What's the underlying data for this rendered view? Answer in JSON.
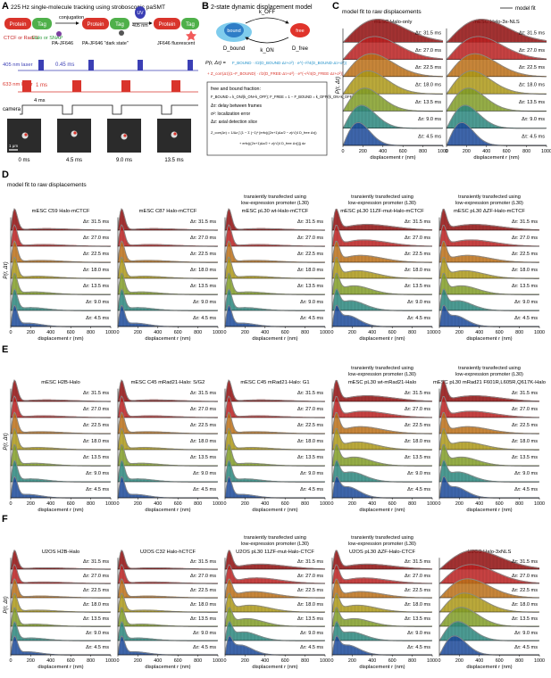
{
  "panel_letters": [
    "A",
    "B",
    "C",
    "D",
    "E",
    "F"
  ],
  "panelA": {
    "title": "225 Hz single-molecule tracking using stroboscopic paSMT",
    "protein": "Protein",
    "tag": "Tag",
    "pa_jf646": "PA-JF646",
    "conjugation": "conjugation",
    "ctcf_rad21": "CTCF or Rad21",
    "halo_snap": "Halo or SNAP",
    "uv": "UV",
    "uv_405": "405 nm",
    "dark_state": "PA-JF646 \"dark state\"",
    "fluorescent": "JF646 fluorescent",
    "laser405": "405 nm laser",
    "pulse405": "0.45 ms",
    "laser633": "633 nm laser",
    "pulse633": "1 ms",
    "camera": "camera",
    "camera_period": "4 ms",
    "scalebar": "1 μm",
    "frame_times": [
      "0 ms",
      "4.5 ms",
      "9.0 ms",
      "13.5 ms"
    ]
  },
  "panelB": {
    "title": "2-state dynamic displacement model",
    "k_off": "k_OFF",
    "k_on": "k_ON",
    "bound": "bound",
    "free": "free",
    "d_bound": "D_bound",
    "d_free": "D_free",
    "eq_lhs": "P(r, Δτ) =",
    "eq_term1": "F_BOUND · r/2(D_BOUND·Δτ+σ²) · e^(−r²/4(D_BOUND·Δτ+σ²))",
    "eq_term2": "+ Z_corr(Δτ)(1−F_BOUND) · r/2(D_FREE·Δτ+σ²) · e^(−r²/4(D_FREE·Δτ+σ²))",
    "box_title": "free and bound fraction:",
    "box_line1": "F_BOUND = k_ON/(k_ON+k_OFF);  F_FREE = 1 − F_BOUND = k_OFF/(k_ON+k_OFF)",
    "box_line2": "Δτ: delay between frames",
    "box_line3": "σ²: localization error",
    "box_line4": "Δz: axial detection slice",
    "box_line5": "Z_corr(Δτ) = 1/Δz ∫ {1 − Σ (−1)ⁿ [erfc(((2n+1)Δz/2 − z)/√(4 D_free Δτ))",
    "box_line6": "+ erfc(((2n+1)Δz/2 + z)/√(4 D_free Δτ))]} dz"
  },
  "model_fit_legend": "model fit",
  "panelC_heading": "model fit to raw displacements",
  "panelD_heading": "model fit to raw displacements",
  "ylabel": "P(r, Δτ)",
  "xlabel": "displacement r (nm)",
  "xticks": [
    "0",
    "200",
    "400",
    "600",
    "800",
    "1000"
  ],
  "dt_labels": [
    "Δτ: 31.5 ms",
    "Δτ: 27.0 ms",
    "Δτ: 22.5 ms",
    "Δτ: 18.0 ms",
    "Δτ: 13.5 ms",
    "Δτ: 9.0 ms",
    "Δτ: 4.5 ms"
  ],
  "colors": [
    "#9a1010",
    "#c62323",
    "#c7771a",
    "#b7a21b",
    "#8aa72a",
    "#2f8f86",
    "#1f4fa3"
  ],
  "panels": {
    "C": [
      {
        "title": "mESC Halo-only",
        "sub": ""
      },
      {
        "title": "mESC Halo-3x-NLS",
        "sub": ""
      }
    ],
    "D": [
      {
        "title": "mESC C59 Halo-mCTCF",
        "sub": ""
      },
      {
        "title": "mESC C87 Halo-mCTCF",
        "sub": ""
      },
      {
        "title": "transiently transfected using low-expression promoter (L30)",
        "sub": "mESC pL30 wt-Halo-mCTCF"
      },
      {
        "title": "transiently transfected using low-expression promoter (L30)",
        "sub": "mESC pL30 11ZF-mut-Halo-mCTCF"
      },
      {
        "title": "transiently transfected using low-expression promoter (L30)",
        "sub": "mESC pL30 ΔZF-Halo-mCTCF"
      }
    ],
    "E": [
      {
        "title": "mESC H2B-Halo",
        "sub": ""
      },
      {
        "title": "mESC C45 mRad21-Halo: S/G2",
        "sub": ""
      },
      {
        "title": "mESC C45 mRad21-Halo: G1",
        "sub": ""
      },
      {
        "title": "transiently transfected using low-expression promoter (L30)",
        "sub": "mESC pL30 wt-mRad21-Halo"
      },
      {
        "title": "transiently transfected using low-expression promoter (L30)",
        "sub": "mESC pL30 mRad21 F601R,L605R,Q617K-Halo"
      }
    ],
    "F": [
      {
        "title": "U2OS H2B-Halo",
        "sub": ""
      },
      {
        "title": "U2OS C32 Halo-hCTCF",
        "sub": ""
      },
      {
        "title": "transiently transfected using low-expression promoter (L30)",
        "sub": "U2OS pL30 11ZF-mut-Halo-CTCF"
      },
      {
        "title": "transiently transfected using low-expression promoter (L30)",
        "sub": "U2OS pL30 ΔZF-Halo-CTCF"
      },
      {
        "title": "U2OS Halo-3xNLS",
        "sub": ""
      }
    ]
  },
  "chart_data": [
    {
      "type": "area",
      "panel": "C",
      "title": "mESC Halo-only",
      "profile": "diffuse",
      "x_range": [
        0,
        1000
      ],
      "xlabel": "displacement r (nm)",
      "ylabel": "P(r, Δτ)",
      "series_names": [
        "Δτ: 31.5 ms",
        "Δτ: 27.0 ms",
        "Δτ: 22.5 ms",
        "Δτ: 18.0 ms",
        "Δτ: 13.5 ms",
        "Δτ: 9.0 ms",
        "Δτ: 4.5 ms"
      ]
    },
    {
      "type": "area",
      "panel": "C",
      "title": "mESC Halo-3x-NLS",
      "profile": "diffuse",
      "x_range": [
        0,
        1000
      ]
    },
    {
      "type": "area",
      "panel": "D",
      "title": "mESC C59 Halo-mCTCF",
      "profile": "bound",
      "x_range": [
        0,
        1000
      ]
    },
    {
      "type": "area",
      "panel": "D",
      "title": "mESC C87 Halo-mCTCF",
      "profile": "bound",
      "x_range": [
        0,
        1000
      ]
    },
    {
      "type": "area",
      "panel": "D",
      "title": "mESC pL30 wt-Halo-mCTCF",
      "profile": "bound",
      "x_range": [
        0,
        1000
      ]
    },
    {
      "type": "area",
      "panel": "D",
      "title": "mESC pL30 11ZF-mut-Halo-mCTCF",
      "profile": "mixed",
      "x_range": [
        0,
        1000
      ]
    },
    {
      "type": "area",
      "panel": "D",
      "title": "mESC pL30 ΔZF-Halo-mCTCF",
      "profile": "mixed",
      "x_range": [
        0,
        1000
      ]
    },
    {
      "type": "area",
      "panel": "E",
      "title": "mESC H2B-Halo",
      "profile": "bound",
      "x_range": [
        0,
        1000
      ]
    },
    {
      "type": "area",
      "panel": "E",
      "title": "mESC C45 mRad21-Halo: S/G2",
      "profile": "bound",
      "x_range": [
        0,
        1000
      ]
    },
    {
      "type": "area",
      "panel": "E",
      "title": "mESC C45 mRad21-Halo: G1",
      "profile": "bound",
      "x_range": [
        0,
        1000
      ]
    },
    {
      "type": "area",
      "panel": "E",
      "title": "mESC pL30 wt-mRad21-Halo",
      "profile": "mixed",
      "x_range": [
        0,
        1000
      ]
    },
    {
      "type": "area",
      "panel": "E",
      "title": "mESC pL30 mRad21 F601R,L605R,Q617K-Halo",
      "profile": "mixed",
      "x_range": [
        0,
        1000
      ]
    },
    {
      "type": "area",
      "panel": "F",
      "title": "U2OS H2B-Halo",
      "profile": "bound",
      "x_range": [
        0,
        1000
      ]
    },
    {
      "type": "area",
      "panel": "F",
      "title": "U2OS C32 Halo-hCTCF",
      "profile": "bound",
      "x_range": [
        0,
        1000
      ]
    },
    {
      "type": "area",
      "panel": "F",
      "title": "U2OS pL30 11ZF-mut-Halo-CTCF",
      "profile": "mixed",
      "x_range": [
        0,
        1000
      ]
    },
    {
      "type": "area",
      "panel": "F",
      "title": "U2OS pL30 ΔZF-Halo-CTCF",
      "profile": "mixed",
      "x_range": [
        0,
        1000
      ]
    },
    {
      "type": "area",
      "panel": "F",
      "title": "U2OS Halo-3xNLS",
      "profile": "diffuse",
      "x_range": [
        0,
        1000
      ]
    }
  ]
}
